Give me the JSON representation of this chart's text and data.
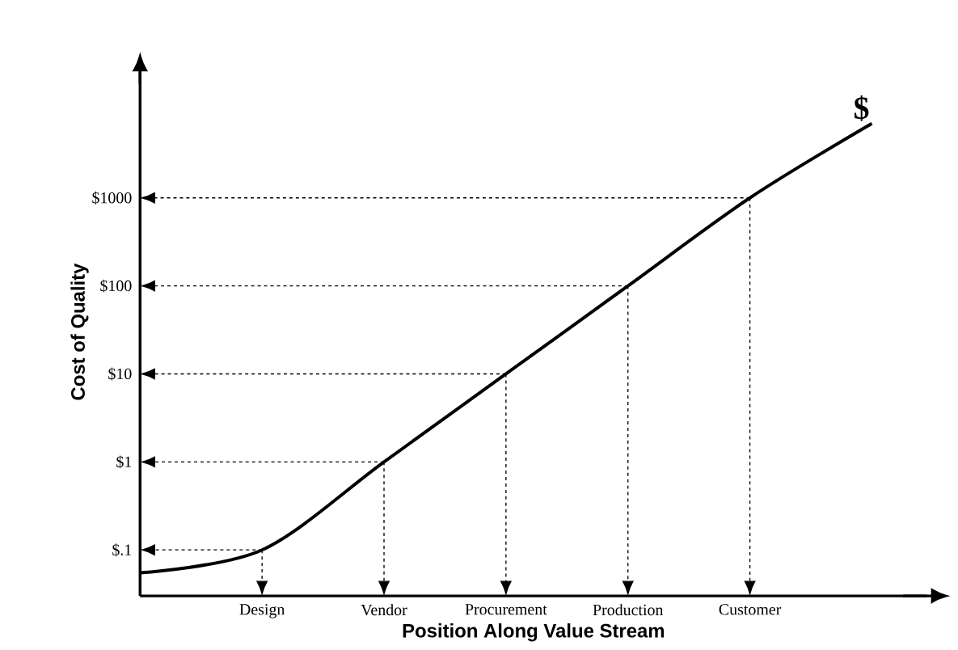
{
  "chart_data": {
    "type": "line",
    "xlabel": "Position Along Value Stream",
    "ylabel": "Cost of Quality",
    "log": "y",
    "ylim": [
      0.03,
      30000
    ],
    "categories": [
      null,
      "Design",
      "Vendor",
      "Procurement",
      "Production",
      "Customer",
      null
    ],
    "yticks": [
      {
        "value": 0.1,
        "label": "$.1"
      },
      {
        "value": 1,
        "label": "$1"
      },
      {
        "value": 10,
        "label": "$10"
      },
      {
        "value": 100,
        "label": "$100"
      },
      {
        "value": 1000,
        "label": "$1000"
      }
    ],
    "series": [
      {
        "color": "#000000",
        "values": [
          0.055,
          0.1,
          1,
          10,
          100,
          1000,
          7000
        ]
      }
    ],
    "annotations": [
      "$"
    ]
  }
}
